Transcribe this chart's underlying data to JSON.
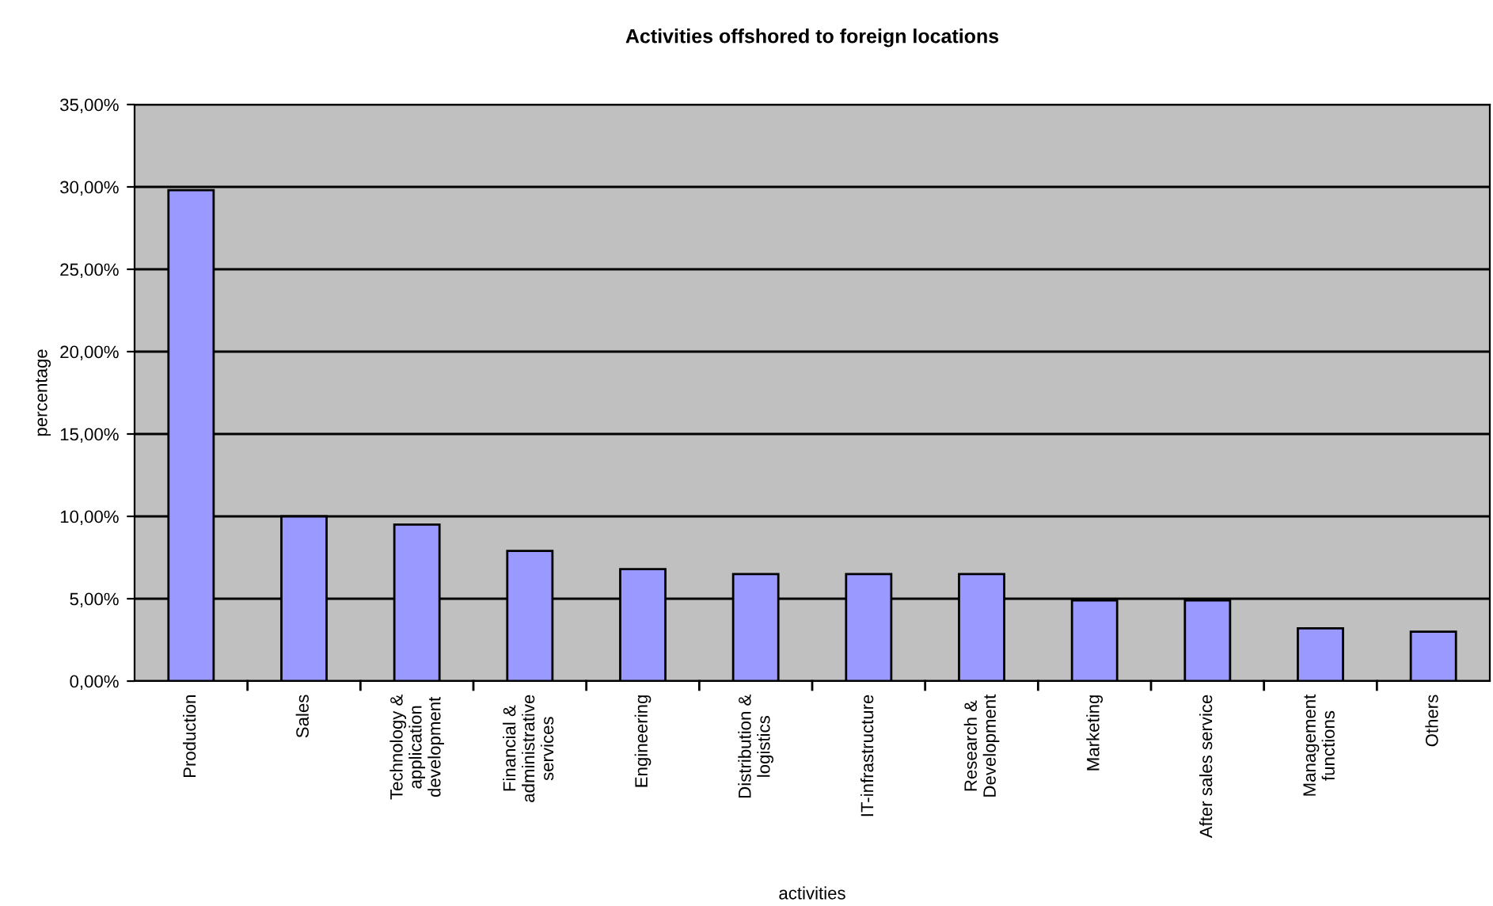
{
  "chart_data": {
    "type": "bar",
    "title": "Activities offshored to foreign locations",
    "xlabel": "activities",
    "ylabel": "percentage",
    "categories": [
      "Production",
      "Sales",
      "Technology &\napplication\ndevelopment",
      "Financial &\nadministrative\nservices",
      "Engineering",
      "Distribution &\nlogistics",
      "IT-infrastructure",
      "Research &\nDevelopment",
      "Marketing",
      "After sales service",
      "Management\nfunctions",
      "Others"
    ],
    "values": [
      29.8,
      10.0,
      9.5,
      7.9,
      6.8,
      6.5,
      6.5,
      6.5,
      4.9,
      4.9,
      3.2,
      3.0
    ],
    "color": "#9999ff",
    "ylim": [
      0,
      35
    ],
    "yticks": [
      {
        "value": 0,
        "label": "0,00%"
      },
      {
        "value": 5,
        "label": "5,00%"
      },
      {
        "value": 10,
        "label": "10,00%"
      },
      {
        "value": 15,
        "label": "15,00%"
      },
      {
        "value": 20,
        "label": "20,00%"
      },
      {
        "value": 25,
        "label": "25,00%"
      },
      {
        "value": 30,
        "label": "30,00%"
      },
      {
        "value": 35,
        "label": "35,00%"
      }
    ],
    "grid": "y",
    "legend": false
  }
}
